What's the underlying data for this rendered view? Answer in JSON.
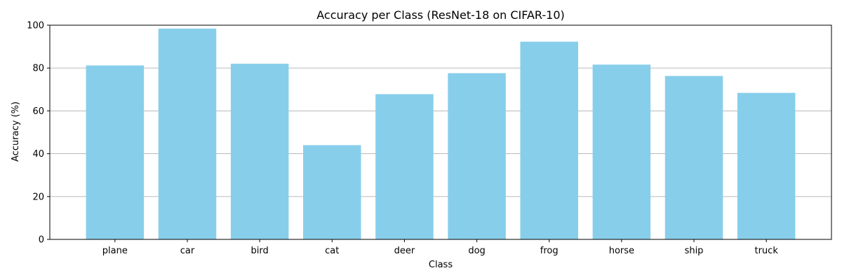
{
  "chart_data": {
    "type": "bar",
    "title": "Accuracy per Class (ResNet-18 on CIFAR-10)",
    "xlabel": "Class",
    "ylabel": "Accuracy (%)",
    "categories": [
      "plane",
      "car",
      "bird",
      "cat",
      "deer",
      "dog",
      "frog",
      "horse",
      "ship",
      "truck"
    ],
    "values": [
      81.2,
      98.4,
      82.0,
      44.0,
      67.8,
      77.6,
      92.3,
      81.6,
      76.3,
      68.4
    ],
    "ylim": [
      0,
      100
    ],
    "yticks": [
      0,
      20,
      40,
      60,
      80,
      100
    ],
    "grid": "y-axis only",
    "legend": "none",
    "bar_color": "#87ceeb"
  }
}
